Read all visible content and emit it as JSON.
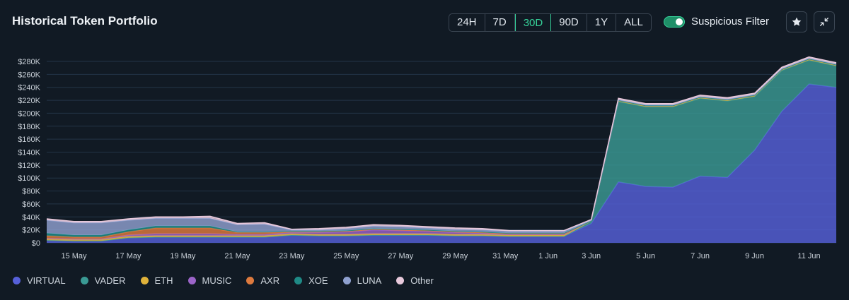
{
  "header": {
    "title": "Historical Token Portfolio",
    "ranges": [
      "24H",
      "7D",
      "30D",
      "90D",
      "1Y",
      "ALL"
    ],
    "active_range": "30D",
    "filter_label": "Suspicious Filter",
    "filter_on": true
  },
  "colors": {
    "VIRTUAL": "#5660d9",
    "VADER": "#3a9a94",
    "ETH": "#e0b23a",
    "MUSIC": "#9b64c8",
    "AXR": "#de7a3e",
    "XOE": "#1f8a86",
    "LUNA": "#8fa0cf",
    "Other": "#e8c9dc"
  },
  "chart_data": {
    "type": "area",
    "stacked": true,
    "x_ticks": [
      "15 May",
      "17 May",
      "19 May",
      "21 May",
      "23 May",
      "25 May",
      "27 May",
      "29 May",
      "31 May",
      "1 Jun",
      "3 Jun",
      "5 Jun",
      "7 Jun",
      "9 Jun",
      "11 Jun"
    ],
    "y_ticks": [
      "$0",
      "$20K",
      "$40K",
      "$60K",
      "$80K",
      "$100K",
      "$120K",
      "$140K",
      "$160K",
      "$180K",
      "$200K",
      "$220K",
      "$240K",
      "$260K",
      "$280K"
    ],
    "ylim": [
      0,
      280000
    ],
    "grid": true,
    "legend": "bottom",
    "x": [
      "14 May",
      "15 May",
      "16 May",
      "17 May",
      "18 May",
      "19 May",
      "20 May",
      "21 May",
      "22 May",
      "23 May",
      "24 May",
      "25 May",
      "26 May",
      "27 May",
      "28 May",
      "29 May",
      "30 May",
      "31 May",
      "1 Jun",
      "2 Jun",
      "3 Jun",
      "4 Jun",
      "5 Jun",
      "6 Jun",
      "7 Jun",
      "8 Jun",
      "9 Jun",
      "10 Jun",
      "11 Jun",
      "12 Jun"
    ],
    "series": [
      {
        "name": "VIRTUAL",
        "values": [
          4000,
          3000,
          3000,
          8000,
          9000,
          9000,
          9000,
          9000,
          9000,
          12000,
          11000,
          11000,
          12000,
          12000,
          12000,
          11000,
          11000,
          10000,
          10000,
          10000,
          30000,
          94000,
          87000,
          86000,
          103000,
          101000,
          143000,
          203000,
          245000,
          240000
        ]
      },
      {
        "name": "VADER",
        "values": [
          0,
          0,
          0,
          0,
          0,
          0,
          0,
          0,
          0,
          0,
          0,
          0,
          0,
          0,
          0,
          0,
          0,
          0,
          0,
          0,
          3000,
          124000,
          123000,
          124000,
          120000,
          118000,
          83000,
          63000,
          37000,
          33000
        ]
      },
      {
        "name": "ETH",
        "values": [
          2000,
          2000,
          2000,
          2000,
          2000,
          2000,
          2000,
          2000,
          2000,
          2000,
          2000,
          2000,
          2000,
          2000,
          2000,
          2000,
          2000,
          2000,
          2000,
          2000,
          1000,
          2000,
          2000,
          2000,
          2000,
          2000,
          2000,
          2000,
          2000,
          2000
        ]
      },
      {
        "name": "MUSIC",
        "values": [
          1000,
          1000,
          1000,
          2000,
          3000,
          3000,
          3000,
          2000,
          2000,
          2000,
          3000,
          4000,
          6000,
          5000,
          4000,
          3000,
          2000,
          1000,
          1000,
          1000,
          0,
          0,
          0,
          0,
          0,
          0,
          0,
          0,
          0,
          0
        ]
      },
      {
        "name": "AXR",
        "values": [
          4000,
          3000,
          3000,
          5000,
          9000,
          9000,
          9000,
          3000,
          3000,
          1000,
          1000,
          1000,
          1000,
          1000,
          1000,
          1000,
          1000,
          1000,
          1000,
          1000,
          0,
          0,
          0,
          0,
          0,
          0,
          0,
          0,
          0,
          0
        ]
      },
      {
        "name": "XOE",
        "values": [
          4000,
          3000,
          3000,
          3000,
          3000,
          3000,
          3000,
          1000,
          1000,
          1000,
          1000,
          1000,
          1000,
          1000,
          1000,
          1000,
          1000,
          1000,
          1000,
          1000,
          0,
          0,
          0,
          0,
          0,
          0,
          0,
          0,
          0,
          0
        ]
      },
      {
        "name": "LUNA",
        "values": [
          20000,
          19000,
          19000,
          15000,
          12000,
          12000,
          12000,
          11000,
          12000,
          2000,
          2000,
          3000,
          4000,
          4000,
          3000,
          3000,
          3000,
          3000,
          3000,
          3000,
          1000,
          1000,
          1000,
          1000,
          1000,
          1000,
          1000,
          1000,
          1000,
          1000
        ]
      },
      {
        "name": "Other",
        "values": [
          2000,
          2000,
          2000,
          2000,
          2000,
          2000,
          3000,
          2000,
          2000,
          1000,
          2000,
          2000,
          2000,
          2000,
          2000,
          2000,
          2000,
          1000,
          1000,
          1000,
          1000,
          2000,
          2000,
          2000,
          2000,
          2000,
          2000,
          2000,
          2000,
          2000
        ]
      }
    ]
  }
}
